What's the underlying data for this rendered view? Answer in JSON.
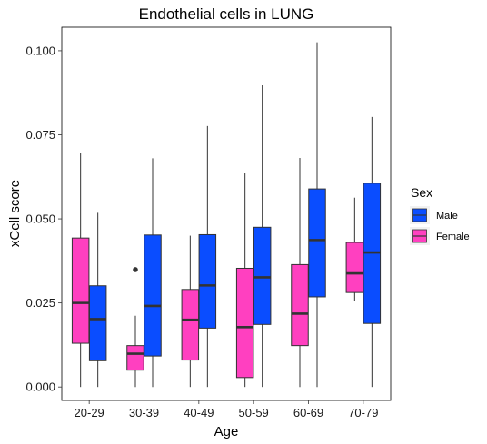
{
  "chart_data": {
    "type": "boxplot",
    "title": "Endothelial cells in LUNG",
    "xlabel": "Age",
    "ylabel": "xCell score",
    "categories": [
      "20-29",
      "30-39",
      "40-49",
      "50-59",
      "60-69",
      "70-79"
    ],
    "ylim": [
      -0.004,
      0.107
    ],
    "yticks": [
      0.0,
      0.025,
      0.05,
      0.075,
      0.1
    ],
    "ytick_labels": [
      "0.000",
      "0.025",
      "0.050",
      "0.075",
      "0.100"
    ],
    "grid": false,
    "legend": {
      "title": "Sex",
      "placement": "right",
      "order": [
        "Male",
        "Female"
      ]
    },
    "series": [
      {
        "name": "Female",
        "color": "#FF40C0",
        "boxes": [
          {
            "category": "20-29",
            "min": 0.0,
            "q1": 0.013,
            "median": 0.025,
            "q3": 0.0443,
            "max": 0.0695,
            "outliers": []
          },
          {
            "category": "30-39",
            "min": 0.0,
            "q1": 0.005,
            "median": 0.0099,
            "q3": 0.0123,
            "max": 0.0212,
            "outliers": [
              0.0349
            ]
          },
          {
            "category": "40-49",
            "min": 0.0,
            "q1": 0.008,
            "median": 0.02,
            "q3": 0.029,
            "max": 0.045,
            "outliers": []
          },
          {
            "category": "50-59",
            "min": 0.0,
            "q1": 0.0028,
            "median": 0.0178,
            "q3": 0.0353,
            "max": 0.0637,
            "outliers": []
          },
          {
            "category": "60-69",
            "min": 0.0,
            "q1": 0.0123,
            "median": 0.0218,
            "q3": 0.0364,
            "max": 0.0681,
            "outliers": []
          },
          {
            "category": "70-79",
            "min": 0.0255,
            "q1": 0.0281,
            "median": 0.0338,
            "q3": 0.043,
            "max": 0.0563,
            "outliers": []
          }
        ]
      },
      {
        "name": "Male",
        "color": "#0A4DFF",
        "boxes": [
          {
            "category": "20-29",
            "min": 0.0,
            "q1": 0.0078,
            "median": 0.0202,
            "q3": 0.0301,
            "max": 0.0518,
            "outliers": []
          },
          {
            "category": "30-39",
            "min": 0.0,
            "q1": 0.0092,
            "median": 0.0241,
            "q3": 0.0452,
            "max": 0.068,
            "outliers": []
          },
          {
            "category": "40-49",
            "min": 0.0,
            "q1": 0.0175,
            "median": 0.0302,
            "q3": 0.0453,
            "max": 0.0776,
            "outliers": []
          },
          {
            "category": "50-59",
            "min": 0.0,
            "q1": 0.0186,
            "median": 0.0326,
            "q3": 0.0475,
            "max": 0.0897,
            "outliers": []
          },
          {
            "category": "60-69",
            "min": 0.0,
            "q1": 0.0268,
            "median": 0.0437,
            "q3": 0.0589,
            "max": 0.1025,
            "outliers": []
          },
          {
            "category": "70-79",
            "min": 0.0,
            "q1": 0.0189,
            "median": 0.04,
            "q3": 0.0606,
            "max": 0.0803,
            "outliers": []
          }
        ]
      }
    ]
  }
}
